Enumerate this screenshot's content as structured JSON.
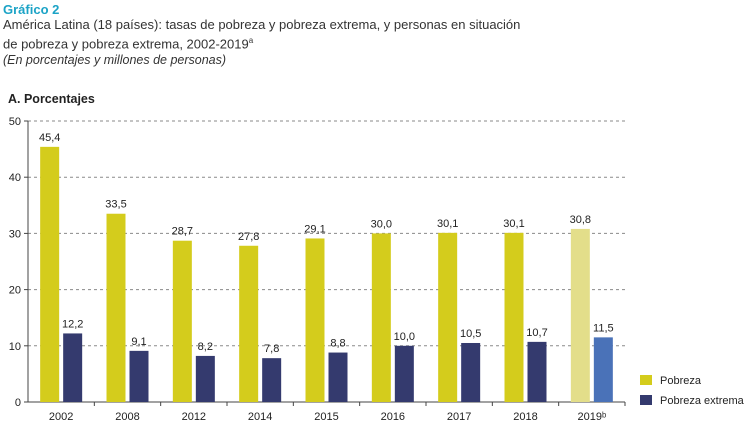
{
  "header": {
    "figure_label": "Gráfico 2",
    "title_line1": "América Latina (18 países): tasas de pobreza y pobreza extrema, y personas en situación",
    "title_line2": "de pobreza y pobreza extrema, 2002-2019",
    "title_sup": "a",
    "subtitle": "(En porcentajes y millones de personas)"
  },
  "panel_label": "A. Porcentajes",
  "chart_data": {
    "type": "bar",
    "categories": [
      "2002",
      "2008",
      "2012",
      "2014",
      "2015",
      "2016",
      "2017",
      "2018",
      "2019ᵇ"
    ],
    "series": [
      {
        "name": "Pobreza",
        "values": [
          45.4,
          33.5,
          28.7,
          27.8,
          29.1,
          30.0,
          30.1,
          30.1,
          30.8
        ],
        "labels": [
          "45,4",
          "33,5",
          "28,7",
          "27,8",
          "29,1",
          "30,0",
          "30,1",
          "30,1",
          "30,8"
        ],
        "color": "#d4cc1c",
        "last_color": "#e3de8a"
      },
      {
        "name": "Pobreza extrema",
        "values": [
          12.2,
          9.1,
          8.2,
          7.8,
          8.8,
          10.0,
          10.5,
          10.7,
          11.5
        ],
        "labels": [
          "12,2",
          "9,1",
          "8,2",
          "7,8",
          "8,8",
          "10,0",
          "10,5",
          "10,7",
          "11,5"
        ],
        "color": "#343a6e",
        "last_color": "#4a72b8"
      }
    ],
    "ylim": [
      0,
      50
    ],
    "yticks": [
      "0",
      "10",
      "20",
      "30",
      "40",
      "50"
    ],
    "grid": true,
    "legend": "bottom-right"
  }
}
